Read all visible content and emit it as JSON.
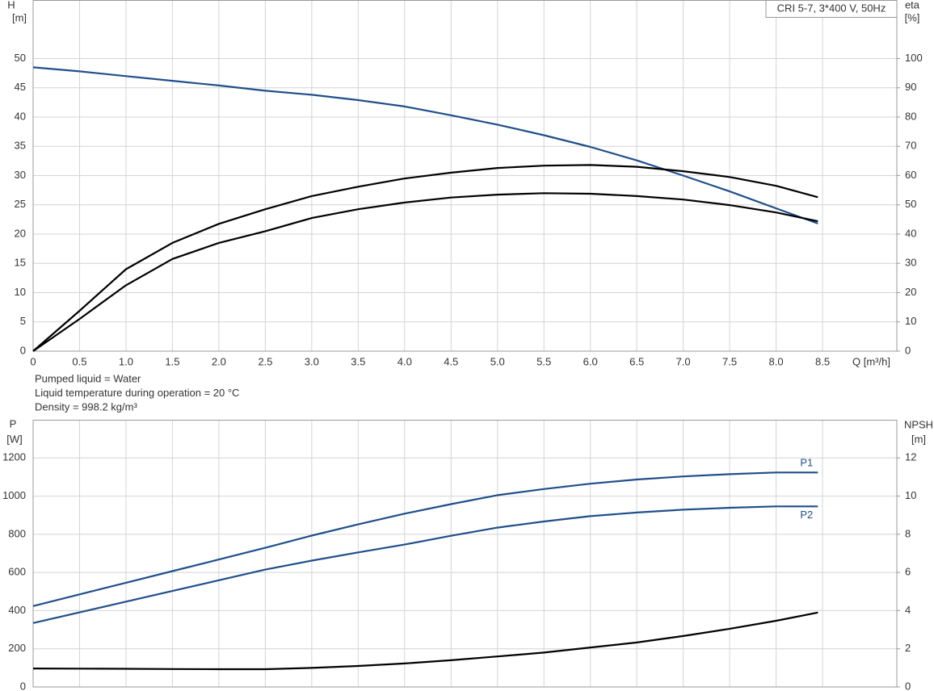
{
  "chart_data": [
    {
      "type": "line",
      "title": "CRI 5-7, 3*400 V, 50Hz",
      "y_label": "H",
      "y_unit": "[m]",
      "y2_label": "eta",
      "y2_unit": "[%]",
      "x_label": "Q [m³/h]",
      "notes": [
        "Pumped liquid = Water",
        "Liquid temperature during operation = 20 °C",
        "Density = 998.2 kg/m³"
      ],
      "x": [
        0,
        0.5,
        1,
        1.5,
        2,
        2.5,
        3,
        3.5,
        4,
        4.5,
        5,
        5.5,
        6,
        6.5,
        7,
        7.5,
        8,
        8.45
      ],
      "series": [
        {
          "color": "#1f4f8a",
          "values": [
            48.5,
            47.8,
            47.0,
            46.2,
            45.4,
            44.5,
            43.8,
            42.9,
            41.8,
            40.3,
            38.7,
            36.9,
            34.9,
            32.6,
            30.0,
            27.3,
            24.4,
            21.8
          ]
        },
        {
          "color": "#000000",
          "axis": "y2",
          "values": [
            0,
            13.8,
            28,
            37,
            43.5,
            48.5,
            53,
            56.2,
            59,
            61,
            62.6,
            63.4,
            63.6,
            63,
            61.5,
            59.5,
            56.5,
            52.6
          ]
        },
        {
          "color": "#000000",
          "axis": "y2",
          "values": [
            0,
            11,
            22.5,
            31.5,
            37,
            41,
            45.5,
            48.5,
            50.8,
            52.5,
            53.5,
            54,
            53.8,
            53,
            51.8,
            49.9,
            47.4,
            44.4
          ]
        }
      ],
      "xlim": [
        0,
        9.3
      ],
      "xticks": [
        0,
        0.5,
        {
          "value": 1,
          "label": "1.0"
        },
        1.5,
        {
          "value": 2,
          "label": "2.0"
        },
        2.5,
        {
          "value": 3,
          "label": "3.0"
        },
        3.5,
        {
          "value": 4,
          "label": "4.0"
        },
        4.5,
        {
          "value": 5,
          "label": "5.0"
        },
        5.5,
        {
          "value": 6,
          "label": "6.0"
        },
        6.5,
        {
          "value": 7,
          "label": "7.0"
        },
        7.5,
        {
          "value": 8,
          "label": "8.0"
        },
        8.5
      ],
      "ylim": [
        0,
        60
      ],
      "yticks": [
        0,
        5,
        10,
        15,
        20,
        25,
        30,
        35,
        40,
        45,
        50
      ],
      "y2lim": [
        0,
        120
      ],
      "y2ticks": [
        0,
        10,
        20,
        30,
        40,
        50,
        60,
        70,
        80,
        90,
        100
      ],
      "grid": true
    },
    {
      "type": "line",
      "y_label": "P",
      "y_unit": "[W]",
      "y2_label": "NPSH",
      "y2_unit": "[m]",
      "x": [
        0,
        0.5,
        1,
        1.5,
        2,
        2.5,
        3,
        3.5,
        4,
        4.5,
        5,
        5.5,
        6,
        6.5,
        7,
        7.5,
        8,
        8.45
      ],
      "series": [
        {
          "name": "P1",
          "color": "#1f4f8a",
          "values": [
            424,
            485,
            546,
            607,
            668,
            729,
            793,
            852,
            908,
            958,
            1005,
            1037,
            1065,
            1087,
            1103,
            1115,
            1124,
            1124
          ]
        },
        {
          "name": "P2",
          "color": "#1f4f8a",
          "values": [
            335,
            391,
            447,
            503,
            559,
            615,
            662,
            705,
            746,
            792,
            835,
            867,
            895,
            914,
            929,
            939,
            946,
            946
          ]
        },
        {
          "color": "#000000",
          "axis": "y2",
          "values": [
            0.97,
            0.96,
            0.95,
            0.94,
            0.93,
            0.93,
            1.0,
            1.1,
            1.23,
            1.4,
            1.6,
            1.8,
            2.07,
            2.33,
            2.67,
            3.05,
            3.47,
            3.9
          ]
        }
      ],
      "xlim": [
        0,
        9.3
      ],
      "ylim": [
        0,
        1400
      ],
      "yticks": [
        0,
        200,
        400,
        600,
        800,
        1000,
        1200
      ],
      "y2lim": [
        0,
        14
      ],
      "y2ticks": [
        0,
        2,
        4,
        6,
        8,
        10,
        12
      ],
      "grid": true
    }
  ]
}
